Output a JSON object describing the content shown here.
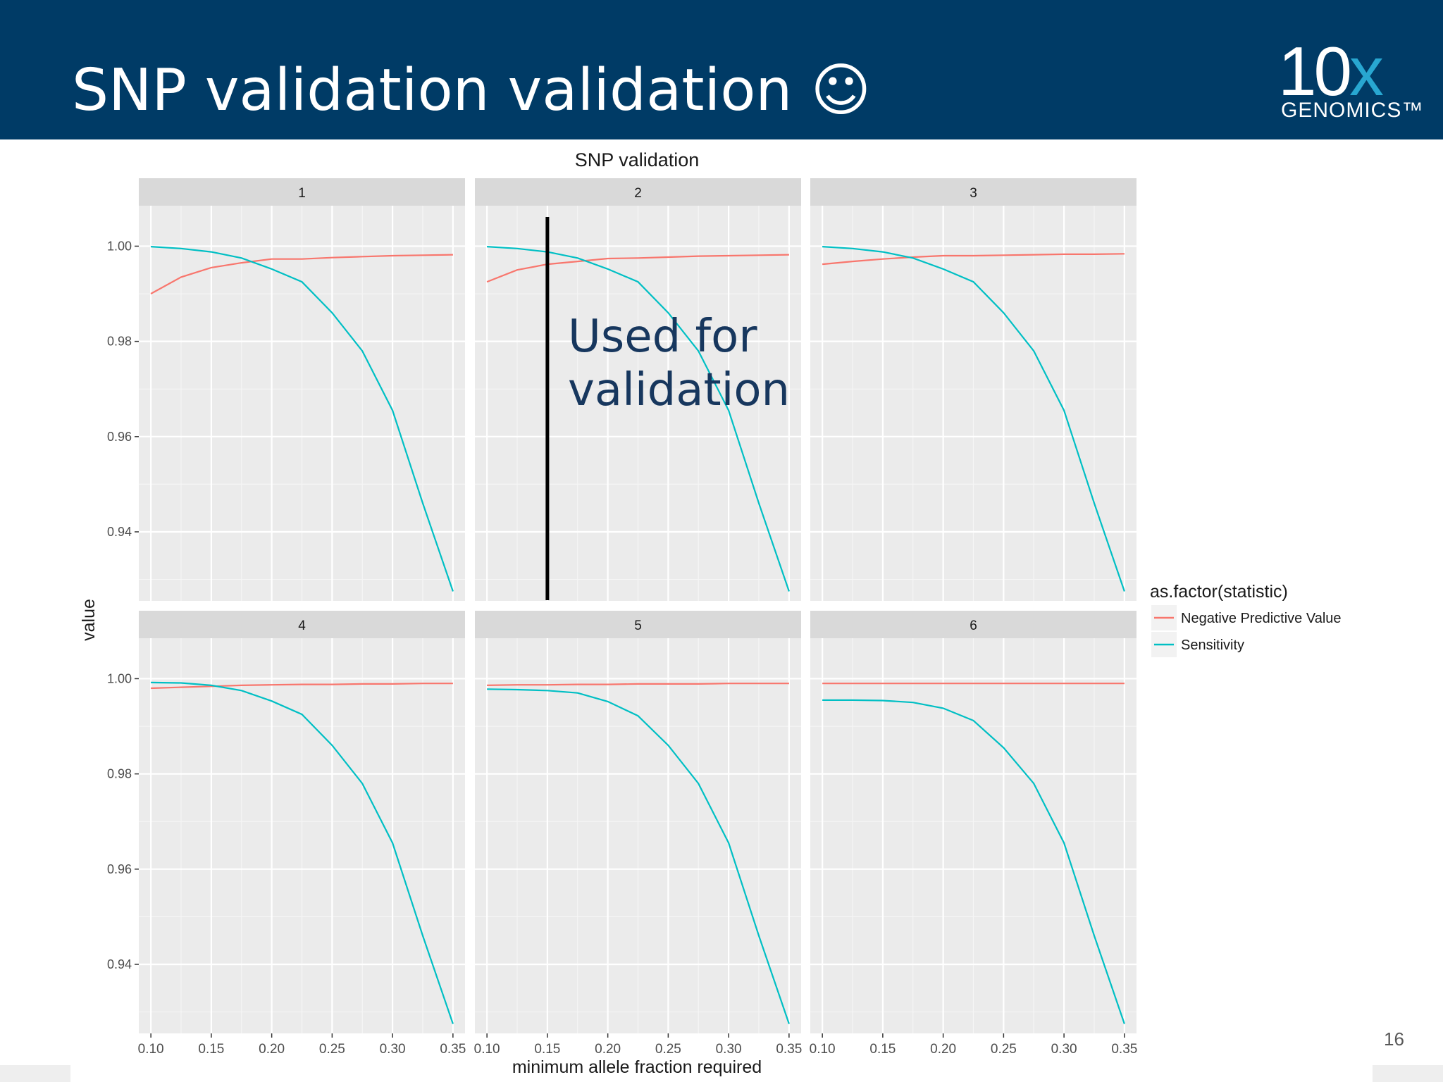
{
  "slide": {
    "title": "SNP validation validation ☺",
    "page_number": "16",
    "header_color": "#003b66"
  },
  "logo": {
    "text": "10",
    "x": "x",
    "subtext": "GENOMICS™"
  },
  "annotation": {
    "lines": [
      "Used for",
      "validation"
    ],
    "color": "#17375e",
    "marker_x": 0.15,
    "marker_panel": "2"
  },
  "chart_data": {
    "type": "line",
    "title": "SNP validation",
    "xlabel": "minimum allele fraction required",
    "ylabel": "value",
    "xlim": [
      0.09,
      0.36
    ],
    "ylim": [
      0.9255,
      1.0085
    ],
    "xticks": [
      "0.10",
      "0.15",
      "0.20",
      "0.25",
      "0.30",
      "0.35"
    ],
    "yticks": [
      "0.94",
      "0.96",
      "0.98",
      "1.00"
    ],
    "grid": true,
    "legend": {
      "title": "as.factor(statistic)",
      "position": "right"
    },
    "x": [
      0.1,
      0.125,
      0.15,
      0.175,
      0.2,
      0.225,
      0.25,
      0.275,
      0.3,
      0.325,
      0.35
    ],
    "series_colors": {
      "Negative Predictive Value": "#f8766d",
      "Sensitivity": "#00bfc4"
    },
    "panels": [
      {
        "facet": "1",
        "series": [
          {
            "name": "Negative Predictive Value",
            "values": [
              0.99,
              0.9935,
              0.9955,
              0.9965,
              0.9973,
              0.9973,
              0.9976,
              0.9978,
              0.998,
              0.9981,
              0.9982
            ]
          },
          {
            "name": "Sensitivity",
            "values": [
              0.9999,
              0.9995,
              0.9988,
              0.9975,
              0.9952,
              0.9925,
              0.986,
              0.978,
              0.9655,
              0.946,
              0.9275
            ]
          }
        ]
      },
      {
        "facet": "2",
        "series": [
          {
            "name": "Negative Predictive Value",
            "values": [
              0.9925,
              0.995,
              0.9962,
              0.9968,
              0.9974,
              0.9975,
              0.9977,
              0.9979,
              0.998,
              0.9981,
              0.9982
            ]
          },
          {
            "name": "Sensitivity",
            "values": [
              0.9999,
              0.9995,
              0.9988,
              0.9975,
              0.9952,
              0.9925,
              0.986,
              0.978,
              0.9655,
              0.946,
              0.9275
            ]
          }
        ]
      },
      {
        "facet": "3",
        "series": [
          {
            "name": "Negative Predictive Value",
            "values": [
              0.9962,
              0.9968,
              0.9973,
              0.9977,
              0.998,
              0.998,
              0.9981,
              0.9982,
              0.9983,
              0.9983,
              0.9984
            ]
          },
          {
            "name": "Sensitivity",
            "values": [
              0.9999,
              0.9995,
              0.9988,
              0.9975,
              0.9952,
              0.9925,
              0.986,
              0.978,
              0.9655,
              0.946,
              0.9275
            ]
          }
        ]
      },
      {
        "facet": "4",
        "series": [
          {
            "name": "Negative Predictive Value",
            "values": [
              0.998,
              0.9982,
              0.9984,
              0.9986,
              0.9987,
              0.9988,
              0.9988,
              0.9989,
              0.9989,
              0.999,
              0.999
            ]
          },
          {
            "name": "Sensitivity",
            "values": [
              0.9992,
              0.9991,
              0.9986,
              0.9975,
              0.9953,
              0.9925,
              0.986,
              0.978,
              0.9655,
              0.946,
              0.9275
            ]
          }
        ]
      },
      {
        "facet": "5",
        "series": [
          {
            "name": "Negative Predictive Value",
            "values": [
              0.9986,
              0.9987,
              0.9987,
              0.9988,
              0.9988,
              0.9989,
              0.9989,
              0.9989,
              0.999,
              0.999,
              0.999
            ]
          },
          {
            "name": "Sensitivity",
            "values": [
              0.9978,
              0.9977,
              0.9975,
              0.997,
              0.9952,
              0.9922,
              0.986,
              0.978,
              0.9655,
              0.946,
              0.9275
            ]
          }
        ]
      },
      {
        "facet": "6",
        "series": [
          {
            "name": "Negative Predictive Value",
            "values": [
              0.999,
              0.999,
              0.999,
              0.999,
              0.999,
              0.999,
              0.999,
              0.999,
              0.999,
              0.999,
              0.999
            ]
          },
          {
            "name": "Sensitivity",
            "values": [
              0.9955,
              0.9955,
              0.9954,
              0.995,
              0.9938,
              0.9912,
              0.9855,
              0.978,
              0.9655,
              0.946,
              0.9275
            ]
          }
        ]
      }
    ]
  }
}
